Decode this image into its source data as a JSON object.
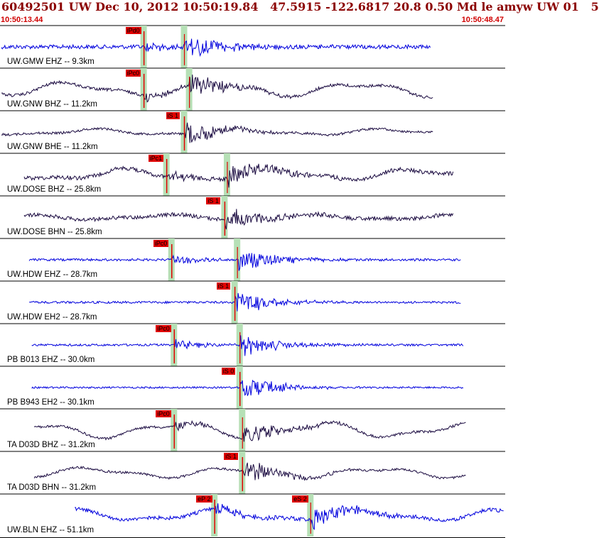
{
  "header": {
    "title": "60492501 UW Dec 10, 2012 10:50:19.84   47.5915 -122.6817 20.8 0.50 Md le amyw UW 01   5",
    "start_time": "10:50:13.44",
    "end_time": "10:50:48.47"
  },
  "colors": {
    "blue_trace": "#0000dd",
    "dark_trace": "#1a0a40",
    "pick_red": "#e00000",
    "window_green": "#b6e0b6",
    "title_red": "#8b0000"
  },
  "panels": [
    {
      "label": "UW.GMW EHZ -- 9.3km",
      "color": "blue",
      "pick": "iPd0",
      "s_pick": "",
      "amp": 0.55,
      "low": 0.0,
      "p": 0.285,
      "s": 0.365,
      "start": 0.0,
      "end": 0.855
    },
    {
      "label": "UW.GNW BHZ -- 11.2km",
      "color": "dark",
      "pick": "iPc0",
      "s_pick": "",
      "amp": 0.3,
      "low": 0.55,
      "p": 0.285,
      "s": 0.375,
      "start": 0.0,
      "end": 0.86
    },
    {
      "label": "UW.GNW BHE -- 11.2km",
      "color": "dark",
      "pick": "iS 1",
      "s_pick": "",
      "amp": 0.15,
      "low": 0.25,
      "p": 0.0,
      "s": 0.365,
      "start": 0.0,
      "end": 0.86
    },
    {
      "label": "UW.DOSE BHZ -- 25.8km",
      "color": "dark",
      "pick": "iPc1",
      "s_pick": "",
      "amp": 0.55,
      "low": 0.45,
      "p": 0.33,
      "s": 0.45,
      "start": 0.045,
      "end": 0.9
    },
    {
      "label": "UW.DOSE BHN -- 25.8km",
      "color": "dark",
      "pick": "iS 1",
      "s_pick": "",
      "amp": 0.5,
      "low": 0.2,
      "p": 0.0,
      "s": 0.445,
      "start": 0.045,
      "end": 0.9
    },
    {
      "label": "UW.HDW EHZ -- 28.7km",
      "color": "blue",
      "pick": "iPc0",
      "s_pick": "",
      "amp": 0.15,
      "low": 0.0,
      "p": 0.34,
      "s": 0.47,
      "start": 0.055,
      "end": 0.915
    },
    {
      "label": "UW.HDW EH2 -- 28.7km",
      "color": "blue",
      "pick": "iS 1",
      "s_pick": "",
      "amp": 0.12,
      "low": 0.0,
      "p": 0.0,
      "s": 0.465,
      "start": 0.055,
      "end": 0.915
    },
    {
      "label": "PB B013 EHZ -- 30.0km",
      "color": "blue",
      "pick": "iPc0",
      "s_pick": "",
      "amp": 0.1,
      "low": 0.0,
      "p": 0.345,
      "s": 0.475,
      "start": 0.06,
      "end": 0.92
    },
    {
      "label": "PB B943 EH2 -- 30.1km",
      "color": "blue",
      "pick": "iS 0",
      "s_pick": "",
      "amp": 0.02,
      "low": 0.0,
      "p": 0.0,
      "s": 0.475,
      "start": 0.06,
      "end": 0.92
    },
    {
      "label": "TA D03D BHZ -- 31.2km",
      "color": "dark",
      "pick": "iPc0",
      "s_pick": "",
      "amp": 0.2,
      "low": 0.6,
      "p": 0.345,
      "s": 0.48,
      "start": 0.065,
      "end": 0.925
    },
    {
      "label": "TA D03D BHN -- 31.2km",
      "color": "dark",
      "pick": "iS 1",
      "s_pick": "",
      "amp": 0.15,
      "low": 0.4,
      "p": 0.0,
      "s": 0.48,
      "start": 0.065,
      "end": 0.925
    },
    {
      "label": "UW.BLN EHZ -- 51.1km",
      "color": "blue",
      "pick": "eP 2",
      "s_pick": "eS 2",
      "amp": 0.45,
      "low": 0.45,
      "p": 0.425,
      "s": 0.615,
      "start": 0.145,
      "end": 1.0
    }
  ]
}
